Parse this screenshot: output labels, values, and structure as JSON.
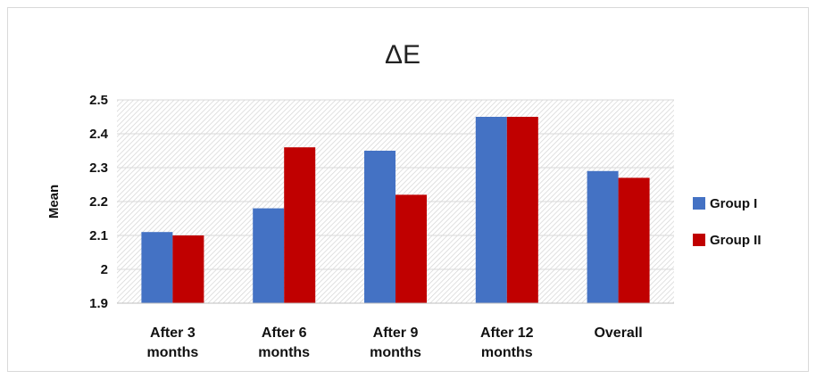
{
  "chart_data": {
    "type": "bar",
    "title": "ΔE",
    "ylabel": "Mean",
    "xlabel": "",
    "categories": [
      [
        "After 3",
        "months"
      ],
      [
        "After 6",
        "months"
      ],
      [
        "After 9",
        "months"
      ],
      [
        "After 12",
        "months"
      ],
      [
        "Overall"
      ]
    ],
    "series": [
      {
        "name": "Group I",
        "color": "#4472c4",
        "values": [
          2.11,
          2.18,
          2.35,
          2.45,
          2.29
        ]
      },
      {
        "name": "Group II",
        "color": "#c00000",
        "values": [
          2.1,
          2.36,
          2.22,
          2.45,
          2.27
        ]
      }
    ],
    "ylim": [
      1.9,
      2.5
    ],
    "yticks": [
      "1.9",
      "2",
      "2.1",
      "2.2",
      "2.3",
      "2.4",
      "2.5"
    ],
    "grid": true,
    "legend_position": "right"
  }
}
